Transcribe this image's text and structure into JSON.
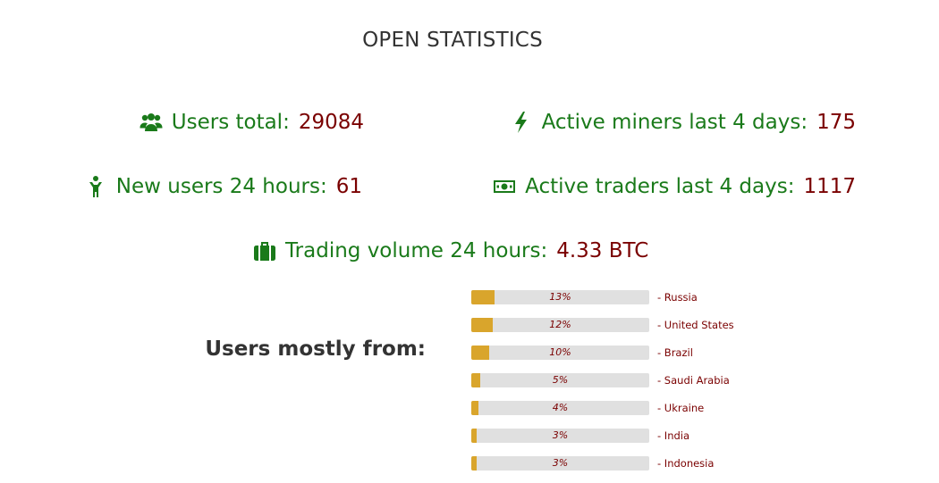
{
  "page_title": "OPEN STATISTICS",
  "stats": {
    "users_total": {
      "label": "Users total:",
      "value": "29084",
      "icon": "users-icon"
    },
    "active_miners": {
      "label": "Active miners last 4 days:",
      "value": "175",
      "icon": "lightning-icon"
    },
    "new_users": {
      "label": "New users 24 hours:",
      "value": "61",
      "icon": "person-icon"
    },
    "active_traders": {
      "label": "Active traders last 4 days:",
      "value": "1117",
      "icon": "money-icon"
    },
    "trading_volume": {
      "label": "Trading volume 24 hours:",
      "value": "4.33 BTC",
      "icon": "briefcase-icon"
    }
  },
  "users_from": {
    "heading": "Users mostly from:",
    "countries": [
      {
        "name": "- Russia",
        "percent_label": "13%",
        "percent": 13
      },
      {
        "name": "- United States",
        "percent_label": "12%",
        "percent": 12
      },
      {
        "name": "- Brazil",
        "percent_label": "10%",
        "percent": 10
      },
      {
        "name": "- Saudi Arabia",
        "percent_label": "5%",
        "percent": 5
      },
      {
        "name": "- Ukraine",
        "percent_label": "4%",
        "percent": 4
      },
      {
        "name": "- India",
        "percent_label": "3%",
        "percent": 3
      },
      {
        "name": "- Indonesia",
        "percent_label": "3%",
        "percent": 3
      }
    ]
  },
  "colors": {
    "label_green": "#1a7a1a",
    "value_dark_red": "#7a0000",
    "bar_fill": "#d9a52c",
    "bar_track": "#e0e0e0"
  }
}
